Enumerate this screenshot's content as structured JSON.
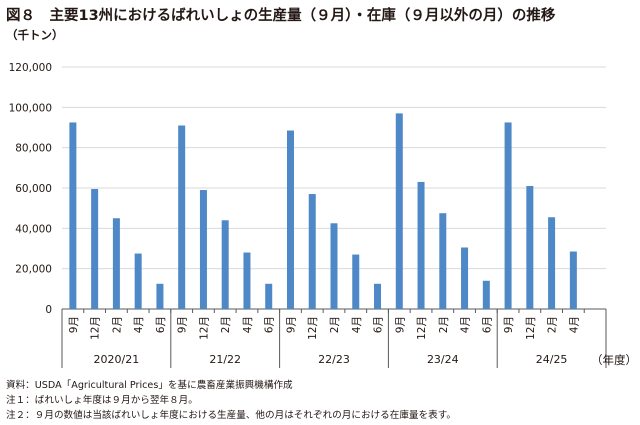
{
  "title": "図８　主要13州におけるばれいしょの生産量（９月）・在庫（９月以外の月）の推移",
  "y_unit": "（千トン）",
  "x_unit": "（年度）",
  "notes": [
    "資料：USDA「Agricultural Prices」を基に農畜産業振興機構作成",
    "注１：ばれいしょ年度は９月から翌年８月。",
    "注２：９月の数値は当該ばれいしょ年度における生産量、他の月はそれぞれの月における在庫量を表す。"
  ],
  "colors": {
    "bar": "#4f88c6",
    "grid": "#d9d9d9",
    "axis": "#595959"
  },
  "chart_data": {
    "type": "bar",
    "title": "主要13州におけるばれいしょの生産量（９月）・在庫（９月以外の月）の推移",
    "ylabel": "（千トン）",
    "xlabel": "（年度）",
    "ylim": [
      0,
      120000
    ],
    "yticks": [
      "0",
      "20,000",
      "40,000",
      "60,000",
      "80,000",
      "100,000",
      "120,000"
    ],
    "grid": true,
    "groups": [
      {
        "label": "2020/21",
        "months": [
          "9月",
          "12月",
          "2月",
          "4月",
          "6月"
        ],
        "values": [
          92500,
          59500,
          45000,
          27500,
          12500
        ]
      },
      {
        "label": "21/22",
        "months": [
          "9月",
          "12月",
          "2月",
          "4月",
          "6月"
        ],
        "values": [
          91000,
          59000,
          44000,
          28000,
          12500
        ]
      },
      {
        "label": "22/23",
        "months": [
          "9月",
          "12月",
          "2月",
          "4月",
          "6月"
        ],
        "values": [
          88500,
          57000,
          42500,
          27000,
          12500
        ]
      },
      {
        "label": "23/24",
        "months": [
          "9月",
          "12月",
          "2月",
          "4月",
          "6月"
        ],
        "values": [
          97000,
          63000,
          47500,
          30500,
          14000
        ]
      },
      {
        "label": "24/25",
        "months": [
          "9月",
          "12月",
          "2月",
          "4月"
        ],
        "values": [
          92500,
          61000,
          45500,
          28500
        ]
      }
    ]
  }
}
